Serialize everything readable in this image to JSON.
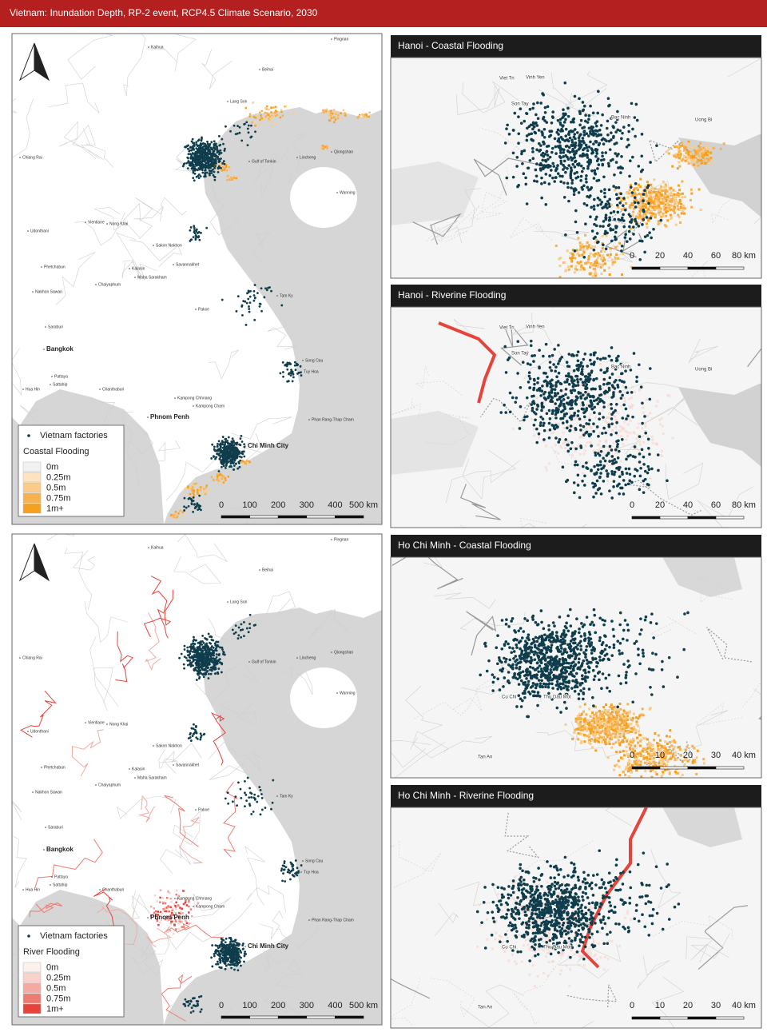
{
  "header": {
    "title": "Vietnam: Inundation Depth, RP-2 event, RCP4.5 Climate Scenario, 2030"
  },
  "main_maps": [
    {
      "legend": {
        "points_label": "Vietnam factories",
        "flood_label": "Coastal Flooding",
        "classes": [
          {
            "label": "0m",
            "color": "#f2f2f2"
          },
          {
            "label": "0.25m",
            "color": "#fde3c0"
          },
          {
            "label": "0.5m",
            "color": "#fbcb8a"
          },
          {
            "label": "0.75m",
            "color": "#f8b14f"
          },
          {
            "label": "1m+",
            "color": "#f5a01f"
          }
        ]
      },
      "scale": [
        "0",
        "100",
        "200",
        "300",
        "400",
        "500 km"
      ],
      "places": [
        "Kaihua",
        "Pingnan",
        "Beihai",
        "Lang Son",
        "Gulf of Tonkin",
        "Lincheng",
        "Qiongshan",
        "Wanning",
        "Chiang Rai",
        "Vientiane",
        "Nong Khai",
        "Udonthani",
        "Sakon Nakhon",
        "Savannakhet",
        "Kalasin",
        "Maha Sarakham",
        "Phetchabun",
        "Nakhon Sawan",
        "Chaiyaphum",
        "Tam Ky",
        "Pakxe",
        "Saraburi",
        "Bangkok",
        "Song Cau",
        "Tuy Hoa",
        "Pattaya",
        "Sattahip",
        "Chanthaburi",
        "Hua Hin",
        "Kampong Chhnang",
        "Kampong Cham",
        "Phnom Penh",
        "Phan Rang-Thap Cham",
        "Chi Minh City"
      ]
    },
    {
      "legend": {
        "points_label": "Vietnam factories",
        "flood_label": "River Flooding",
        "classes": [
          {
            "label": "0m",
            "color": "#fdf1ee"
          },
          {
            "label": "0.25m",
            "color": "#f9d2cc"
          },
          {
            "label": "0.5m",
            "color": "#f4aaa3"
          },
          {
            "label": "0.75m",
            "color": "#ee7b72"
          },
          {
            "label": "1m+",
            "color": "#e8433b"
          }
        ]
      },
      "scale": [
        "0",
        "100",
        "200",
        "300",
        "400",
        "500 km"
      ],
      "places": [
        "Kaihua",
        "Pingnan",
        "Beihai",
        "Lang Son",
        "Gulf of Tonkin",
        "Lincheng",
        "Qiongshan",
        "Wanning",
        "Chiang Rai",
        "Vientiane",
        "Nong Khai",
        "Udonthani",
        "Sakon Nakhon",
        "Savannakhet",
        "Kalasin",
        "Maha Sarakham",
        "Phetchabun",
        "Nakhon Sawan",
        "Chaiyaphum",
        "Tam Ky",
        "Pakxe",
        "Saraburi",
        "Bangkok",
        "Song Cau",
        "Tuy Hoa",
        "Pattaya",
        "Sattahip",
        "Chanthaburi",
        "Hua Hin",
        "Kampong Chhnang",
        "Kampong Cham",
        "Phnom Penh",
        "Phan Rang-Thap Cham",
        "Chi Minh City"
      ]
    }
  ],
  "insets": [
    {
      "title": "Hanoi - Coastal Flooding",
      "scale": [
        "0",
        "20",
        "40",
        "60",
        "80 km"
      ],
      "places": [
        "Viet Tri",
        "Vinh Yen",
        "Son Tay",
        "Bac Ninh",
        "Uong Bi"
      ]
    },
    {
      "title": "Hanoi - Riverine Flooding",
      "scale": [
        "0",
        "20",
        "40",
        "60",
        "80 km"
      ],
      "places": [
        "Viet Tri",
        "Vinh Yen",
        "Son Tay",
        "Bac Ninh",
        "Uong Bi"
      ]
    },
    {
      "title": "Ho Chi Minh - Coastal Flooding",
      "scale": [
        "0",
        "10",
        "20",
        "30",
        "40 km"
      ],
      "places": [
        "Cu Chi",
        "Thu Dau Mot",
        "Tan An"
      ]
    },
    {
      "title": "Ho Chi Minh - Riverine Flooding",
      "scale": [
        "0",
        "10",
        "20",
        "30",
        "40 km"
      ],
      "places": [
        "Cu Chi",
        "Thu Dau Mot",
        "Tan An"
      ]
    }
  ]
}
